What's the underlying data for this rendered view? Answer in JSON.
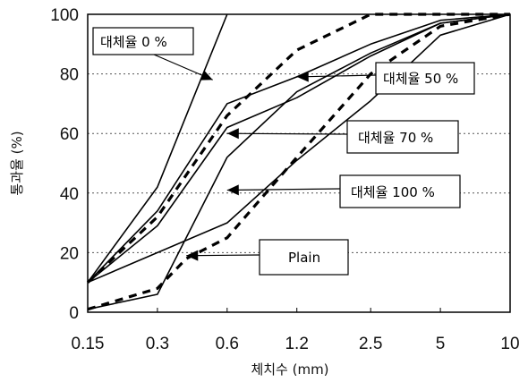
{
  "chart_data": {
    "type": "line",
    "xlabel": "체치수 (mm)",
    "ylabel": "통과율 (%)",
    "x_ticks": [
      "0.15",
      "0.3",
      "0.6",
      "1.2",
      "2.5",
      "5",
      "10"
    ],
    "x_scale": "log",
    "y_ticks": [
      "0",
      "20",
      "40",
      "60",
      "80",
      "100"
    ],
    "ylim": [
      0,
      100
    ],
    "grid": "horizontal dotted",
    "series": [
      {
        "name": "대체율 0 %",
        "style": "solid",
        "x": [
          0.15,
          0.3,
          0.6
        ],
        "y": [
          10,
          42,
          100
        ]
      },
      {
        "name": "대체율 50 %",
        "style": "solid",
        "x": [
          0.15,
          0.3,
          0.6,
          1.2,
          2.5,
          5,
          10
        ],
        "y": [
          10,
          34,
          70,
          79,
          90,
          98,
          100
        ]
      },
      {
        "name": "대체율 70 %",
        "style": "solid",
        "x": [
          0.15,
          0.3,
          0.6,
          1.2,
          2.5,
          5,
          10
        ],
        "y": [
          10,
          29,
          62,
          72,
          86,
          97,
          100
        ]
      },
      {
        "name": "대체율 100 %",
        "style": "solid",
        "x": [
          0.15,
          0.3,
          0.6,
          1.2,
          2.5,
          5,
          10
        ],
        "y": [
          1,
          6,
          52,
          74,
          87,
          97,
          100
        ]
      },
      {
        "name": "Plain",
        "style": "dashed",
        "x": [
          0.15,
          0.3,
          0.4,
          0.6,
          1.2,
          2.5,
          5,
          10
        ],
        "y": [
          1,
          8,
          18,
          25,
          52,
          80,
          96,
          100
        ]
      },
      {
        "name": "",
        "style": "dashed",
        "x": [
          0.15,
          0.3,
          0.6,
          1.2,
          2.5,
          10
        ],
        "y": [
          10,
          32,
          66,
          88,
          100,
          100
        ]
      },
      {
        "name": "",
        "style": "solid",
        "x": [
          0.15,
          0.6,
          1.2,
          2.5,
          5,
          10
        ],
        "y": [
          10,
          30,
          51,
          71,
          93,
          100
        ]
      }
    ],
    "annotations": [
      {
        "label": "대체율 0 %",
        "points_to": {
          "x": 0.52,
          "y": 78
        }
      },
      {
        "label": "대체율 50 %",
        "points_to": {
          "x": 1.2,
          "y": 79
        }
      },
      {
        "label": "대체율 70 %",
        "points_to": {
          "x": 0.6,
          "y": 60
        }
      },
      {
        "label": "대체율 100 %",
        "points_to": {
          "x": 0.6,
          "y": 41
        }
      },
      {
        "label": "Plain",
        "points_to": {
          "x": 0.4,
          "y": 19
        }
      }
    ]
  }
}
